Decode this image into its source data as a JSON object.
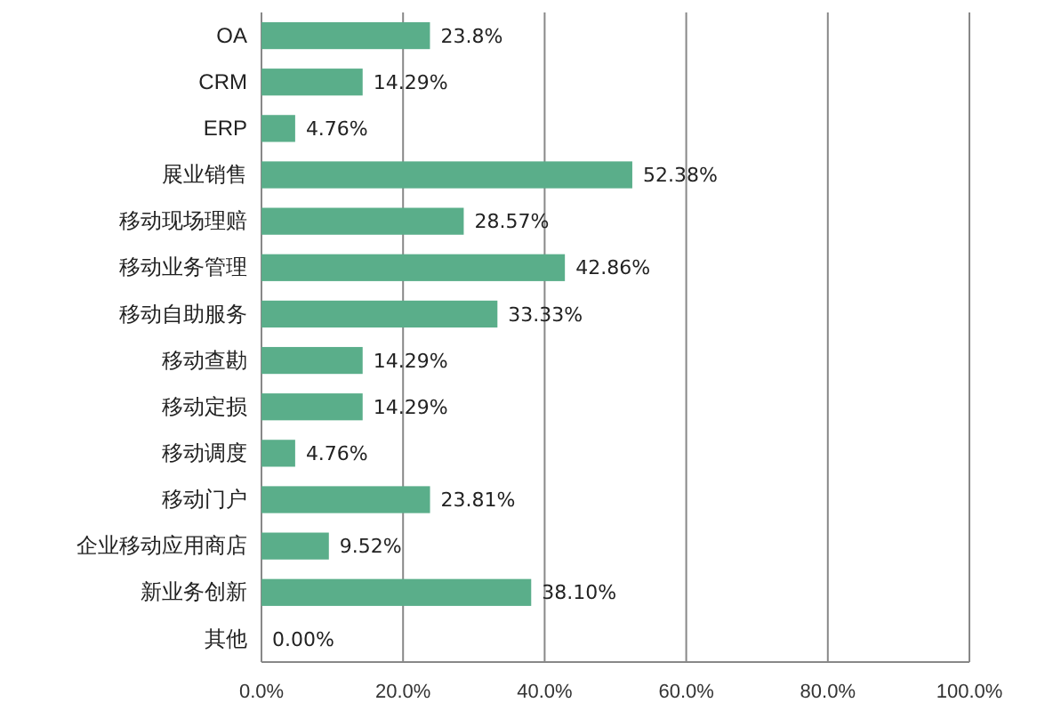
{
  "chart_data": {
    "type": "bar",
    "orientation": "horizontal",
    "categories": [
      "OA",
      "CRM",
      "ERP",
      "展业销售",
      "移动现场理赔",
      "移动业务管理",
      "移动自助服务",
      "移动查勘",
      "移动定损",
      "移动调度",
      "移动门户",
      "企业移动应用商店",
      "新业务创新",
      "其他"
    ],
    "values": [
      23.8,
      14.29,
      4.76,
      52.38,
      28.57,
      42.86,
      33.33,
      14.29,
      14.29,
      4.76,
      23.81,
      9.52,
      38.1,
      0
    ],
    "value_labels": [
      "23.8%",
      "14.29%",
      "4.76%",
      "52.38%",
      "28.57%",
      "42.86%",
      "33.33%",
      "14.29%",
      "14.29%",
      "4.76%",
      "23.81%",
      "9.52%",
      "38.10%",
      "0.00%"
    ],
    "color": "#5aae8a",
    "xlim": [
      0,
      100
    ],
    "xticks": [
      {
        "value": 0,
        "label": "0.0%"
      },
      {
        "value": 20,
        "label": "20.0%"
      },
      {
        "value": 40,
        "label": "40.0%"
      },
      {
        "value": 60,
        "label": "60.0%"
      },
      {
        "value": 80,
        "label": "80.0%"
      },
      {
        "value": 100,
        "label": "100.0%"
      }
    ],
    "grid": "x"
  }
}
